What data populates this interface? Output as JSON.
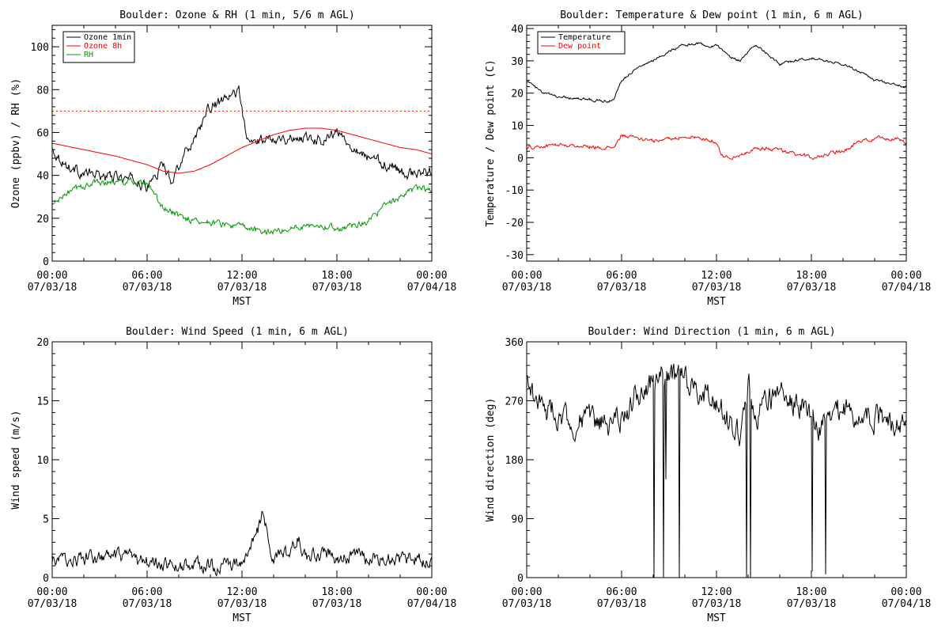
{
  "chart_data": [
    {
      "type": "line",
      "title": "Boulder: Ozone & RH (1 min, 5/6 m AGL)",
      "xlabel": "MST",
      "ylabel": "Ozone (ppbv) / RH (%)",
      "x_ticks": [
        "00:00",
        "06:00",
        "12:00",
        "18:00",
        "00:00"
      ],
      "x_tick_dates": [
        "07/03/18",
        "07/03/18",
        "07/03/18",
        "07/03/18",
        "07/04/18"
      ],
      "x_hours": [
        0,
        6,
        12,
        18,
        24
      ],
      "ylim": [
        0,
        110
      ],
      "y_ticks": [
        0,
        20,
        40,
        60,
        80,
        100
      ],
      "reference_line": {
        "y": 70,
        "style": "dotted",
        "color": "#ff0000"
      },
      "legend": "top-left",
      "series": [
        {
          "name": "Ozone 1min",
          "color": "#000000",
          "noise": 2.5,
          "x": [
            0,
            1,
            2,
            3,
            4,
            5,
            5.5,
            6,
            6.5,
            7,
            7.5,
            8,
            9,
            10,
            11,
            11.5,
            11.8,
            12,
            12.3,
            13,
            14,
            15,
            16,
            17,
            18,
            19,
            20,
            21,
            22,
            23,
            24
          ],
          "y": [
            52,
            44,
            41,
            40,
            39,
            38,
            37,
            34,
            40,
            45,
            38,
            45,
            58,
            72,
            75,
            78,
            80,
            72,
            55,
            56,
            58,
            57,
            58,
            57,
            60,
            54,
            48,
            46,
            42,
            40,
            43
          ]
        },
        {
          "name": "Ozone 8h",
          "color": "#ff0000",
          "noise": 0,
          "x": [
            0,
            2,
            4,
            6,
            7,
            8,
            9,
            10,
            11,
            12,
            13,
            14,
            15,
            16,
            17,
            18,
            19,
            20,
            21,
            22,
            23,
            24
          ],
          "y": [
            55,
            52,
            49,
            45,
            42,
            41,
            42,
            45,
            49,
            53,
            56,
            59,
            61,
            62,
            62,
            61,
            59,
            57,
            55,
            53,
            52,
            50
          ]
        },
        {
          "name": "RH",
          "color": "#009900",
          "noise": 1.5,
          "x": [
            0,
            1,
            2,
            3,
            4,
            5,
            6,
            6.5,
            7,
            8,
            9,
            10,
            11,
            12,
            13,
            14,
            15,
            16,
            17,
            18,
            19,
            20,
            21,
            21.5,
            22,
            23,
            24
          ],
          "y": [
            26,
            32,
            35,
            37,
            37,
            37,
            35,
            30,
            25,
            21,
            19,
            18,
            17,
            16,
            14,
            14,
            15,
            17,
            17,
            15,
            17,
            19,
            25,
            28,
            30,
            34,
            33
          ]
        }
      ]
    },
    {
      "type": "line",
      "title": "Boulder: Temperature & Dew point (1 min, 6 m AGL)",
      "xlabel": "MST",
      "ylabel": "Temperature / Dew point (C)",
      "x_ticks": [
        "00:00",
        "06:00",
        "12:00",
        "18:00",
        "00:00"
      ],
      "x_tick_dates": [
        "07/03/18",
        "07/03/18",
        "07/03/18",
        "07/03/18",
        "07/04/18"
      ],
      "x_hours": [
        0,
        6,
        12,
        18,
        24
      ],
      "ylim": [
        -32,
        41
      ],
      "y_ticks": [
        -30,
        -20,
        -10,
        0,
        10,
        20,
        30,
        40
      ],
      "legend": "top-left",
      "series": [
        {
          "name": "Temperature",
          "color": "#000000",
          "noise": 0.4,
          "x": [
            0,
            1,
            2,
            3,
            4,
            5,
            5.5,
            6,
            7,
            8,
            9,
            10,
            11,
            11.5,
            12,
            12.5,
            13,
            13.5,
            14,
            14.5,
            15,
            16,
            17,
            18,
            19,
            20,
            21,
            22,
            23,
            24
          ],
          "y": [
            24,
            20,
            19,
            18.5,
            18,
            17.5,
            18,
            24,
            28,
            30,
            33,
            35,
            35.5,
            34,
            35,
            33,
            31,
            30,
            33,
            35,
            33,
            29,
            30,
            31,
            30,
            29,
            27,
            24,
            23,
            22
          ]
        },
        {
          "name": "Dew point",
          "color": "#ff0000",
          "noise": 0.6,
          "x": [
            0,
            2,
            4,
            5,
            5.5,
            6,
            7,
            8,
            9,
            10,
            11,
            12,
            12.3,
            12.6,
            13,
            14,
            15,
            16,
            17,
            18,
            19,
            20,
            21,
            22,
            23,
            24
          ],
          "y": [
            3,
            4,
            3.5,
            3,
            3,
            7,
            6,
            5,
            6,
            6.5,
            6,
            5,
            1,
            0.5,
            0,
            2,
            3,
            2.5,
            1,
            0,
            1,
            2,
            5,
            6,
            6,
            5
          ]
        }
      ]
    },
    {
      "type": "line",
      "title": "Boulder: Wind Speed (1 min, 6 m AGL)",
      "xlabel": "MST",
      "ylabel": "Wind speed (m/s)",
      "x_ticks": [
        "00:00",
        "06:00",
        "12:00",
        "18:00",
        "00:00"
      ],
      "x_tick_dates": [
        "07/03/18",
        "07/03/18",
        "07/03/18",
        "07/03/18",
        "07/04/18"
      ],
      "x_hours": [
        0,
        6,
        12,
        18,
        24
      ],
      "ylim": [
        0,
        20
      ],
      "y_ticks": [
        0,
        5,
        10,
        15,
        20
      ],
      "series": [
        {
          "name": "",
          "color": "#000000",
          "noise": 0.6,
          "x": [
            0,
            2,
            4,
            6,
            8,
            10,
            12,
            12.5,
            13,
            13.3,
            13.7,
            14,
            15,
            15.5,
            16,
            17,
            18,
            19,
            20,
            21,
            22,
            23,
            24
          ],
          "y": [
            1.4,
            1.6,
            1.7,
            1.3,
            1.0,
            1.0,
            1.1,
            2.5,
            4.0,
            5.5,
            3.0,
            1.5,
            2.0,
            3.5,
            1.8,
            2.0,
            1.7,
            1.8,
            1.6,
            1.7,
            1.5,
            1.5,
            1.4
          ]
        }
      ]
    },
    {
      "type": "line",
      "title": "Boulder: Wind Direction (1 min, 6 m AGL)",
      "xlabel": "MST",
      "ylabel": "Wind direction (deg)",
      "x_ticks": [
        "00:00",
        "06:00",
        "12:00",
        "18:00",
        "00:00"
      ],
      "x_tick_dates": [
        "07/03/18",
        "07/03/18",
        "07/03/18",
        "07/03/18",
        "07/04/18"
      ],
      "x_hours": [
        0,
        6,
        12,
        18,
        24
      ],
      "ylim": [
        0,
        360
      ],
      "y_ticks": [
        0,
        90,
        180,
        270,
        360
      ],
      "series": [
        {
          "name": "",
          "color": "#000000",
          "noise": 20,
          "x": [
            0,
            1,
            2,
            3,
            4,
            5,
            6,
            6.5,
            7,
            8,
            9,
            10,
            11,
            12,
            13,
            13.5,
            14,
            14.5,
            15,
            16,
            17,
            18,
            18.5,
            19,
            20,
            21,
            22,
            23,
            24
          ],
          "y": [
            300,
            255,
            250,
            235,
            240,
            230,
            240,
            260,
            285,
            300,
            310,
            300,
            290,
            270,
            230,
            215,
            300,
            250,
            270,
            280,
            270,
            250,
            230,
            240,
            260,
            250,
            245,
            240,
            245
          ],
          "drops": [
            [
              8.05,
              0
            ],
            [
              8.65,
              0
            ],
            [
              8.8,
              150
            ],
            [
              9.65,
              0
            ],
            [
              13.9,
              0
            ],
            [
              14.15,
              0
            ],
            [
              18.05,
              10
            ],
            [
              18.9,
              5
            ]
          ]
        }
      ]
    }
  ]
}
